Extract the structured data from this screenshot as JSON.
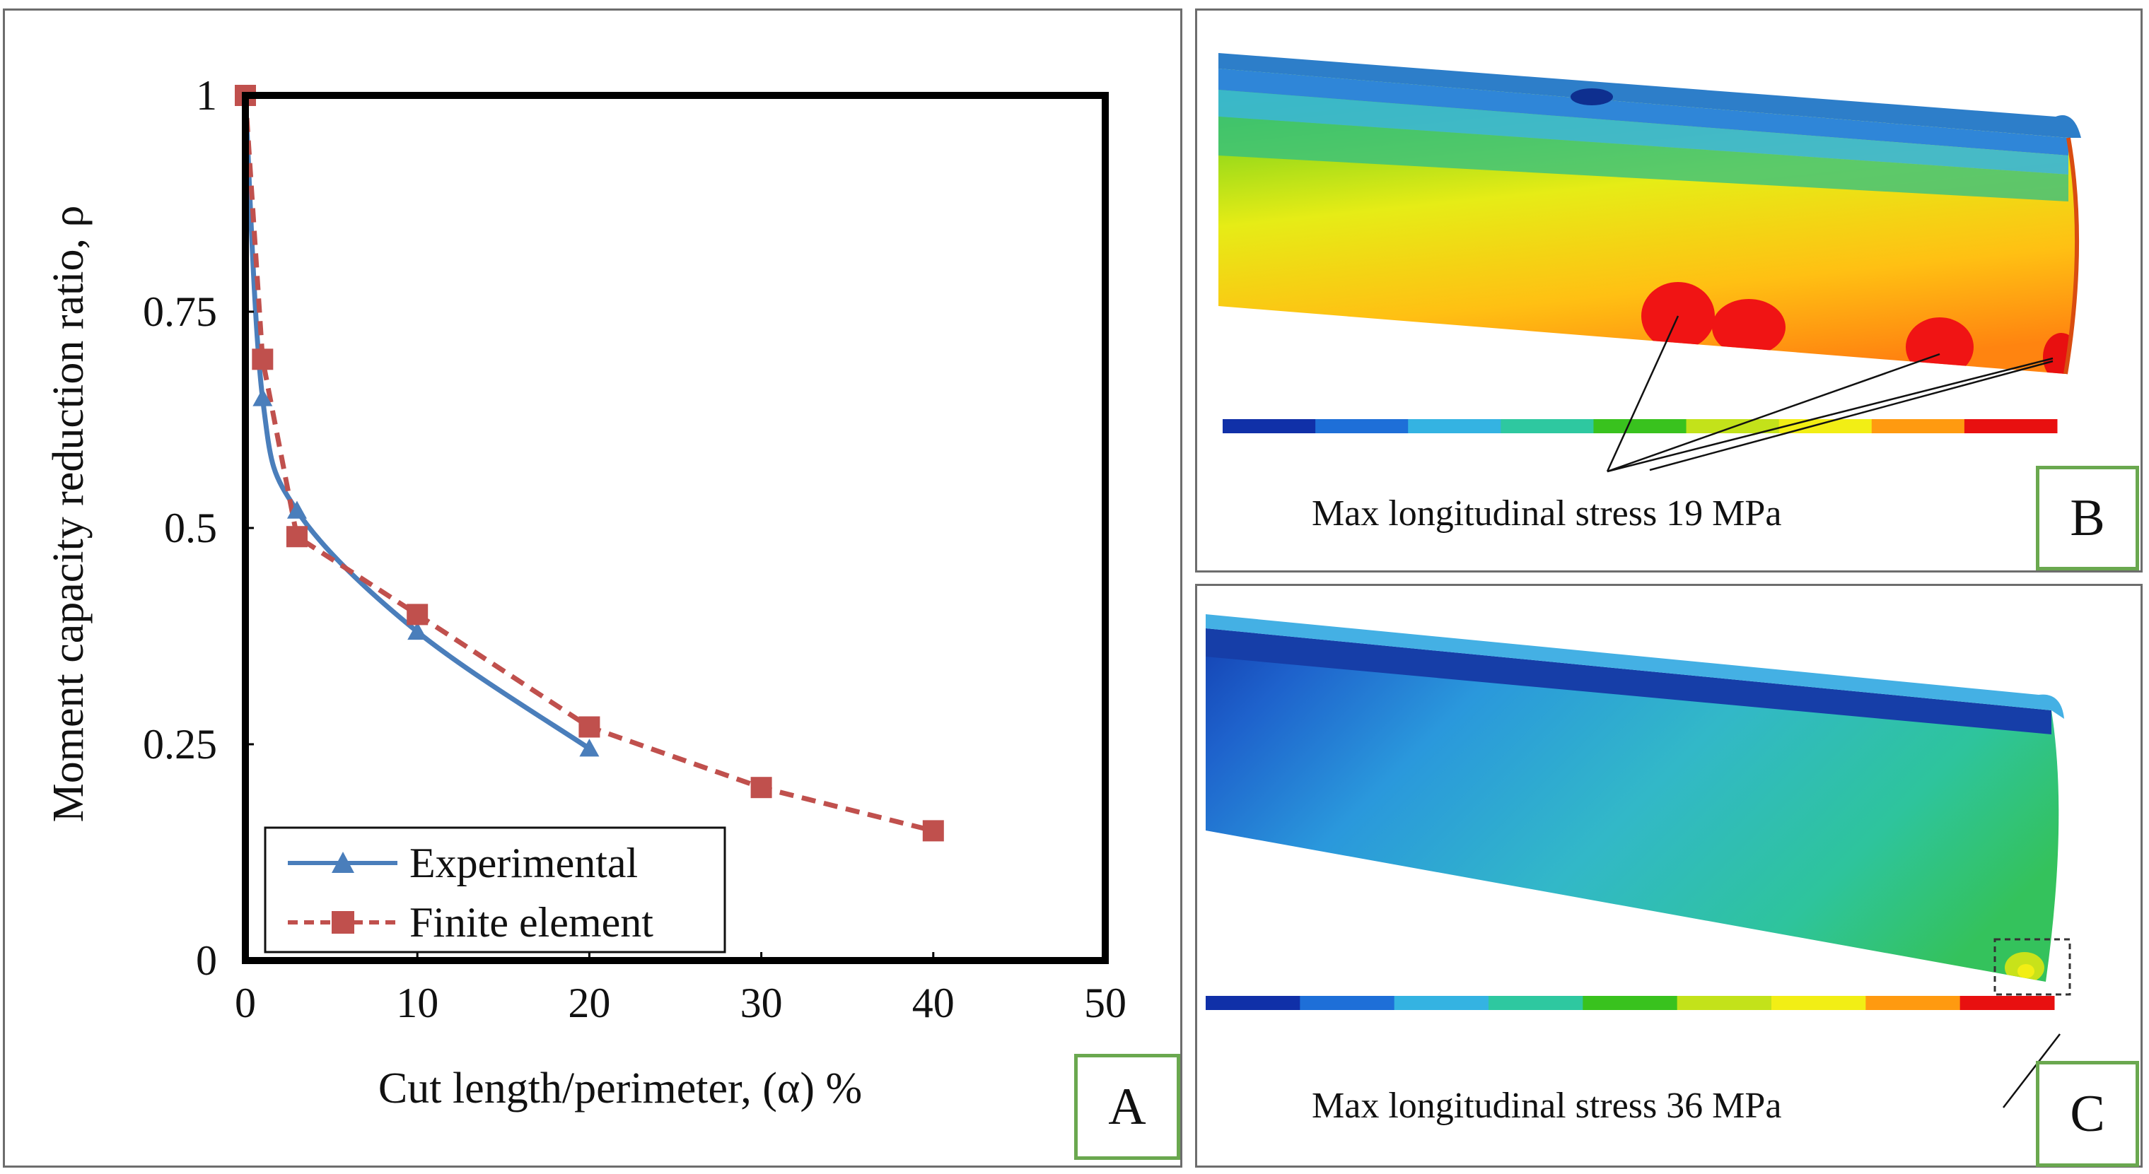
{
  "chart_data": {
    "type": "line",
    "title": "",
    "xlabel": "Cut length/perimeter, (α) %",
    "ylabel": "Moment capacity reduction ratio, ρ",
    "xlim": [
      0,
      50
    ],
    "ylim": [
      0,
      1
    ],
    "x_ticks": [
      "0",
      "10",
      "20",
      "30",
      "40",
      "50"
    ],
    "y_ticks": [
      "0",
      "0.25",
      "0.5",
      "0.75",
      "1"
    ],
    "x_tick_values": [
      0,
      10,
      20,
      30,
      40,
      50
    ],
    "y_tick_values": [
      0,
      0.25,
      0.5,
      0.75,
      1
    ],
    "grid": false,
    "legend_position": "bottom-left",
    "series": [
      {
        "name": "Experimental",
        "color": "#4a7ebb",
        "style": "solid",
        "marker": "triangle",
        "smooth": true,
        "x": [
          0,
          1,
          3,
          10,
          20
        ],
        "y": [
          1.0,
          0.65,
          0.52,
          0.38,
          0.245
        ],
        "marked": [
          false,
          true,
          true,
          true,
          true
        ]
      },
      {
        "name": "Finite element",
        "color": "#c0504d",
        "style": "dashed",
        "marker": "square",
        "smooth": false,
        "x": [
          0,
          1,
          3,
          10,
          20,
          30,
          40
        ],
        "y": [
          1.0,
          0.695,
          0.49,
          0.4,
          0.27,
          0.2,
          0.15
        ],
        "marked": [
          true,
          true,
          true,
          true,
          true,
          true,
          true
        ]
      }
    ]
  },
  "panels": {
    "a": {
      "label": "A"
    },
    "b": {
      "label": "B",
      "caption": "Max longitudinal stress 19 MPa",
      "colors": [
        "#1030a8",
        "#1e6fd8",
        "#34b3e2",
        "#2ec8a0",
        "#39c21e",
        "#c3e21a",
        "#f2ee15",
        "#ff9a10",
        "#e81010"
      ]
    },
    "c": {
      "label": "C",
      "caption": "Max longitudinal stress 36 MPa",
      "colors": [
        "#1030a8",
        "#1e6fd8",
        "#34b3e2",
        "#2ec8a0",
        "#39c21e",
        "#c3e21a",
        "#f2ee15",
        "#ff9a10",
        "#e81010"
      ]
    }
  }
}
